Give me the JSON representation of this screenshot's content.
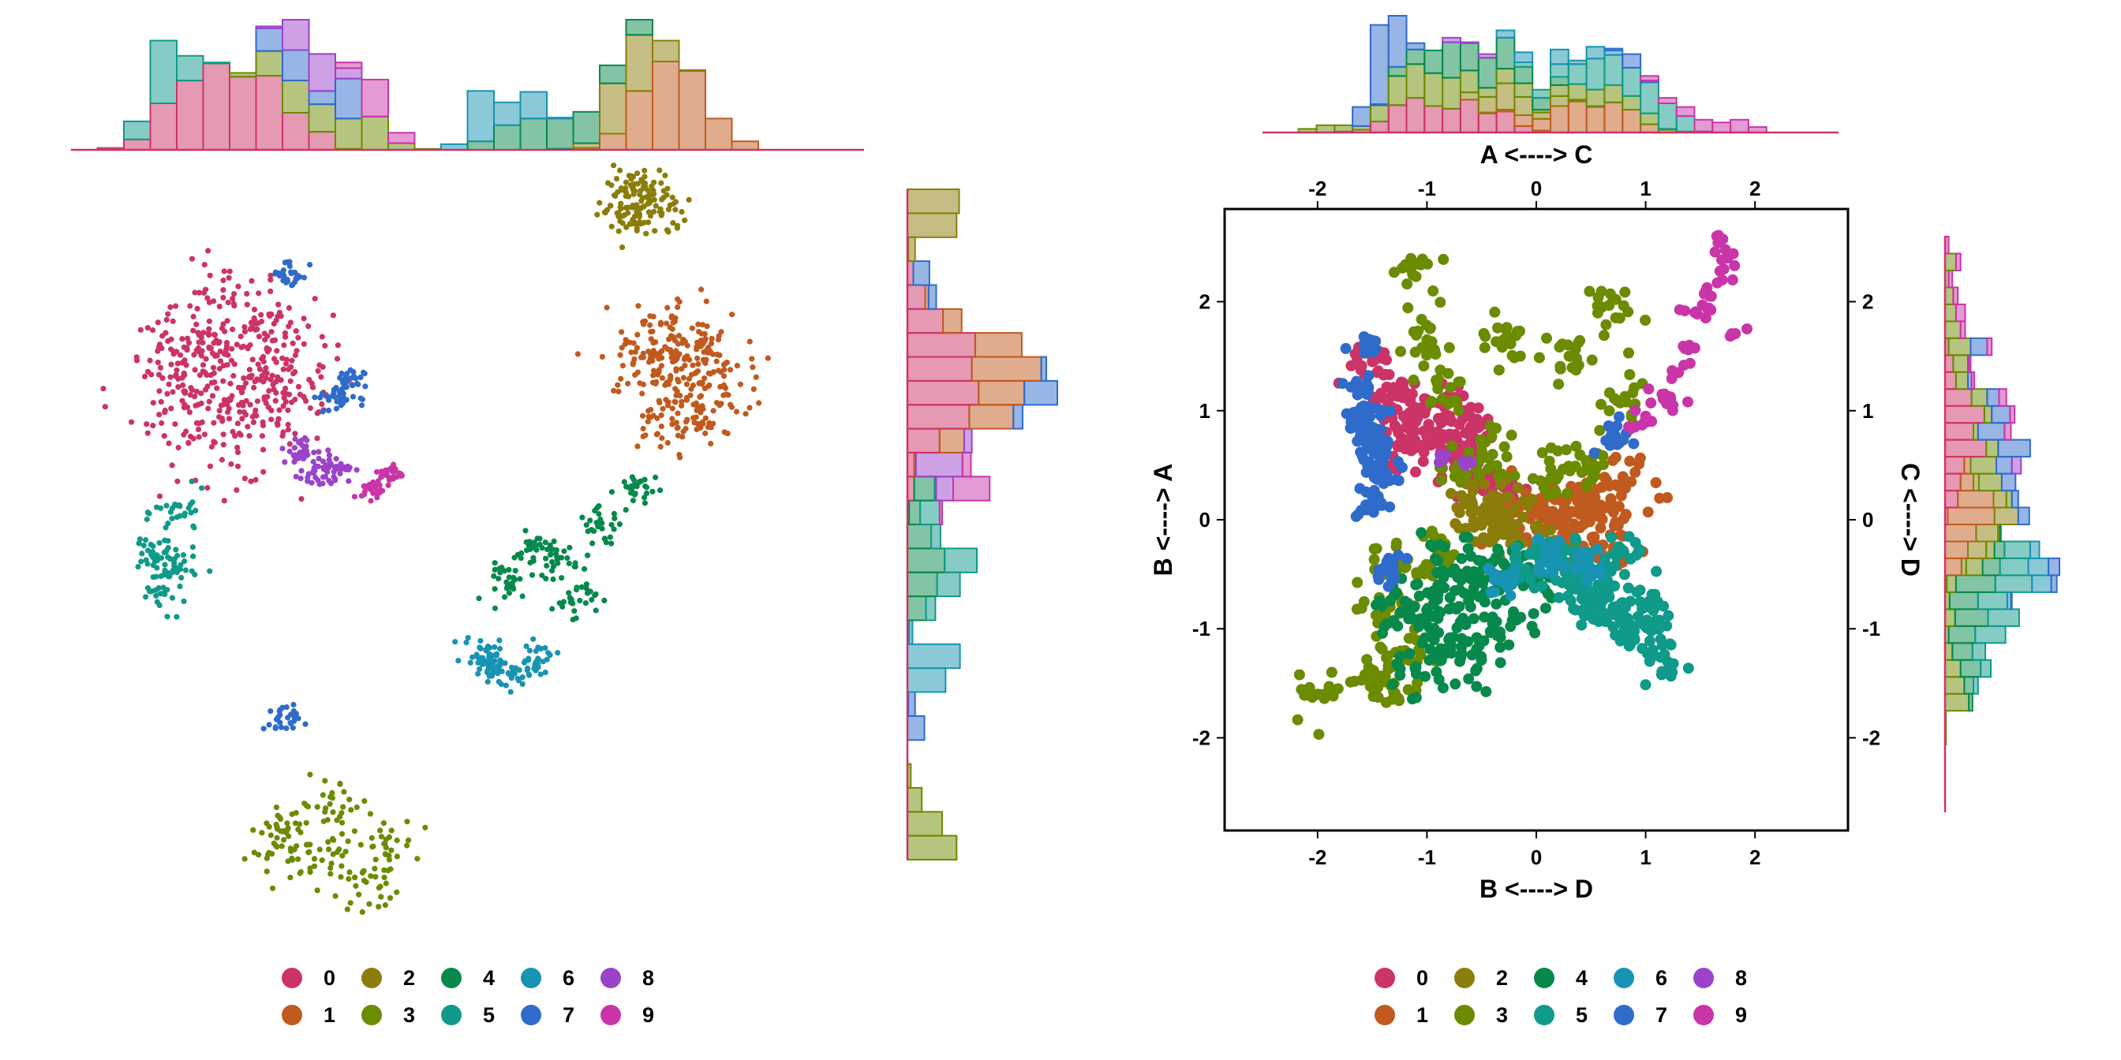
{
  "palette": {
    "0": "#CC3366",
    "1": "#C05A1E",
    "2": "#8B7D0A",
    "3": "#6B8B00",
    "4": "#07894C",
    "5": "#0F9A8A",
    "6": "#1893B3",
    "7": "#2F6BCB",
    "8": "#9B43C9",
    "9": "#C935A8"
  },
  "chart_data": [
    {
      "type": "scatter",
      "panel": "left",
      "axes_visible": false,
      "marginal_histograms": [
        "top",
        "right"
      ],
      "title": "",
      "xlabel": "",
      "ylabel": "",
      "clusters": [
        {
          "name": "0",
          "label_shown": false,
          "points": [
            [
              -1.45,
              1.05
            ],
            [
              -1.35,
              1.35
            ],
            [
              -1.2,
              0.95
            ],
            [
              -1.1,
              1.2
            ],
            [
              -1.55,
              0.7
            ],
            [
              -1.3,
              0.55
            ],
            [
              -1.0,
              0.8
            ],
            [
              -1.6,
              1.0
            ]
          ]
        },
        {
          "name": "1",
          "points": [
            [
              1.1,
              1.25
            ],
            [
              1.2,
              0.95
            ],
            [
              1.05,
              0.7
            ],
            [
              1.3,
              1.05
            ],
            [
              0.95,
              1.05
            ],
            [
              1.25,
              0.75
            ]
          ]
        },
        {
          "name": "2",
          "points": [
            [
              0.8,
              2.05
            ],
            [
              0.9,
              2.15
            ],
            [
              1.0,
              2.0
            ],
            [
              0.85,
              1.95
            ],
            [
              0.95,
              2.1
            ]
          ]
        },
        {
          "name": "3",
          "points": [
            [
              -1.0,
              -2.0
            ],
            [
              -0.8,
              -2.2
            ],
            [
              -0.55,
              -2.35
            ],
            [
              -0.5,
              -2.1
            ],
            [
              -0.75,
              -1.85
            ],
            [
              -1.05,
              -2.15
            ]
          ]
        },
        {
          "name": "4",
          "points": [
            [
              0.2,
              -0.4
            ],
            [
              0.45,
              -0.25
            ],
            [
              0.7,
              -0.05
            ],
            [
              0.9,
              0.2
            ],
            [
              0.55,
              -0.5
            ],
            [
              0.35,
              -0.2
            ]
          ]
        },
        {
          "name": "5",
          "points": [
            [
              -1.75,
              -0.2
            ],
            [
              -1.7,
              -0.45
            ],
            [
              -1.6,
              0.05
            ],
            [
              -1.65,
              -0.3
            ]
          ]
        },
        {
          "name": "6",
          "points": [
            [
              0.1,
              -0.95
            ],
            [
              0.2,
              -1.0
            ],
            [
              0.35,
              -0.9
            ],
            [
              0.05,
              -0.85
            ]
          ]
        },
        {
          "name": "7",
          "points": [
            [
              -1.0,
              1.6
            ],
            [
              -0.7,
              0.9
            ],
            [
              -0.75,
              0.8
            ],
            [
              -1.05,
              -1.3
            ]
          ]
        },
        {
          "name": "8",
          "points": [
            [
              -0.85,
              0.3
            ],
            [
              -0.95,
              0.45
            ],
            [
              -0.75,
              0.35
            ]
          ]
        },
        {
          "name": "9",
          "points": [
            [
              -0.55,
              0.2
            ],
            [
              -0.45,
              0.3
            ]
          ]
        }
      ]
    },
    {
      "type": "scatter",
      "panel": "right",
      "xlabel": "B <----> D",
      "ylabel": "B <----> A",
      "x2label": "A <----> C",
      "y2label": "C <----> D",
      "xlim": [
        -2.85,
        2.85
      ],
      "ylim": [
        -2.85,
        2.85
      ],
      "xticks": [
        "-2",
        "-1",
        "0",
        "1",
        "2"
      ],
      "yticks": [
        "-2",
        "-1",
        "0",
        "1",
        "2"
      ],
      "grid": false,
      "marginal_histograms": [
        "top",
        "right"
      ],
      "clusters": [
        {
          "name": "0",
          "points": [
            [
              -1.5,
              1.45
            ],
            [
              -1.3,
              1.2
            ],
            [
              -1.1,
              0.9
            ],
            [
              -0.9,
              0.7
            ],
            [
              -0.7,
              0.6
            ],
            [
              -0.5,
              0.4
            ],
            [
              -1.4,
              1.0
            ],
            [
              -1.2,
              0.65
            ],
            [
              -0.3,
              0.3
            ],
            [
              -1.0,
              1.1
            ],
            [
              -0.8,
              0.95
            ],
            [
              -0.6,
              0.85
            ]
          ]
        },
        {
          "name": "1",
          "points": [
            [
              0.0,
              0.1
            ],
            [
              0.2,
              0.2
            ],
            [
              0.4,
              0.05
            ],
            [
              0.5,
              0.25
            ],
            [
              0.1,
              -0.1
            ],
            [
              0.6,
              0.1
            ],
            [
              -0.2,
              -0.05
            ],
            [
              0.7,
              -0.3
            ],
            [
              0.3,
              -0.25
            ],
            [
              0.8,
              0.3
            ]
          ]
        },
        {
          "name": "2",
          "points": [
            [
              -0.6,
              0.2
            ],
            [
              -0.4,
              -0.1
            ],
            [
              -0.2,
              0.1
            ],
            [
              0.0,
              -0.2
            ],
            [
              -0.5,
              -0.05
            ]
          ]
        },
        {
          "name": "3",
          "points": [
            [
              -1.15,
              2.3
            ],
            [
              0.6,
              1.95
            ],
            [
              -1.0,
              1.65
            ],
            [
              -0.3,
              1.65
            ],
            [
              0.3,
              1.5
            ],
            [
              0.8,
              1.1
            ],
            [
              -0.9,
              1.2
            ],
            [
              -1.5,
              -1.5
            ],
            [
              -1.2,
              -1.2
            ],
            [
              -1.4,
              -0.8
            ],
            [
              -1.3,
              -0.4
            ],
            [
              -0.7,
              0.5
            ],
            [
              -0.4,
              0.6
            ],
            [
              0.5,
              0.55
            ],
            [
              -2.0,
              -1.6
            ],
            [
              -1.3,
              -1.5
            ],
            [
              0.2,
              0.4
            ],
            [
              -0.9,
              -0.3
            ]
          ]
        },
        {
          "name": "4",
          "points": [
            [
              -1.0,
              -0.9
            ],
            [
              -0.8,
              -1.1
            ],
            [
              -0.6,
              -0.8
            ],
            [
              -0.9,
              -0.6
            ],
            [
              -0.7,
              -1.3
            ],
            [
              -1.1,
              -1.35
            ],
            [
              -0.5,
              -0.55
            ],
            [
              -0.4,
              -0.95
            ],
            [
              -1.2,
              -0.85
            ],
            [
              -0.3,
              -0.4
            ],
            [
              0.0,
              -0.6
            ],
            [
              -0.75,
              -0.45
            ]
          ]
        },
        {
          "name": "5",
          "points": [
            [
              0.2,
              -0.3
            ],
            [
              0.4,
              -0.5
            ],
            [
              0.6,
              -0.6
            ],
            [
              0.8,
              -0.3
            ],
            [
              1.0,
              -0.8
            ],
            [
              1.1,
              -1.0
            ],
            [
              1.2,
              -1.3
            ],
            [
              0.9,
              -1.1
            ],
            [
              0.5,
              -0.8
            ],
            [
              0.3,
              -0.6
            ],
            [
              -0.1,
              -0.45
            ],
            [
              0.7,
              -0.85
            ]
          ]
        },
        {
          "name": "6",
          "points": [
            [
              -0.3,
              -0.55
            ],
            [
              0.1,
              -0.35
            ],
            [
              0.45,
              -0.4
            ]
          ]
        },
        {
          "name": "7",
          "points": [
            [
              -1.55,
              1.65
            ],
            [
              -1.6,
              0.95
            ],
            [
              -1.55,
              0.7
            ],
            [
              -1.45,
              0.6
            ],
            [
              -1.5,
              0.85
            ],
            [
              -1.4,
              0.4
            ],
            [
              -1.5,
              0.15
            ],
            [
              -1.35,
              -0.45
            ],
            [
              -1.6,
              1.2
            ],
            [
              0.7,
              0.75
            ]
          ]
        },
        {
          "name": "8",
          "points": [
            [
              -0.85,
              0.6
            ],
            [
              -0.65,
              0.5
            ]
          ]
        },
        {
          "name": "9",
          "points": [
            [
              1.65,
              2.6
            ],
            [
              1.75,
              2.4
            ],
            [
              1.6,
              2.05
            ],
            [
              1.55,
              1.85
            ],
            [
              1.4,
              1.6
            ],
            [
              1.3,
              1.35
            ],
            [
              1.15,
              1.15
            ],
            [
              1.0,
              0.95
            ],
            [
              1.7,
              2.2
            ],
            [
              1.8,
              1.7
            ],
            [
              1.45,
              1.9
            ],
            [
              1.25,
              1.05
            ],
            [
              0.9,
              0.85
            ]
          ]
        }
      ]
    }
  ],
  "legends": [
    {
      "items": [
        {
          "key": "0",
          "label": "0"
        },
        {
          "key": "2",
          "label": "2"
        },
        {
          "key": "4",
          "label": "4"
        },
        {
          "key": "6",
          "label": "6"
        },
        {
          "key": "8",
          "label": "8"
        },
        {
          "key": "1",
          "label": "1"
        },
        {
          "key": "3",
          "label": "3"
        },
        {
          "key": "5",
          "label": "5"
        },
        {
          "key": "7",
          "label": "7"
        },
        {
          "key": "9",
          "label": "9"
        }
      ]
    },
    {
      "items": [
        {
          "key": "0",
          "label": "0"
        },
        {
          "key": "2",
          "label": "2"
        },
        {
          "key": "4",
          "label": "4"
        },
        {
          "key": "6",
          "label": "6"
        },
        {
          "key": "8",
          "label": "8"
        },
        {
          "key": "1",
          "label": "1"
        },
        {
          "key": "3",
          "label": "3"
        },
        {
          "key": "5",
          "label": "5"
        },
        {
          "key": "7",
          "label": "7"
        },
        {
          "key": "9",
          "label": "9"
        }
      ]
    }
  ]
}
